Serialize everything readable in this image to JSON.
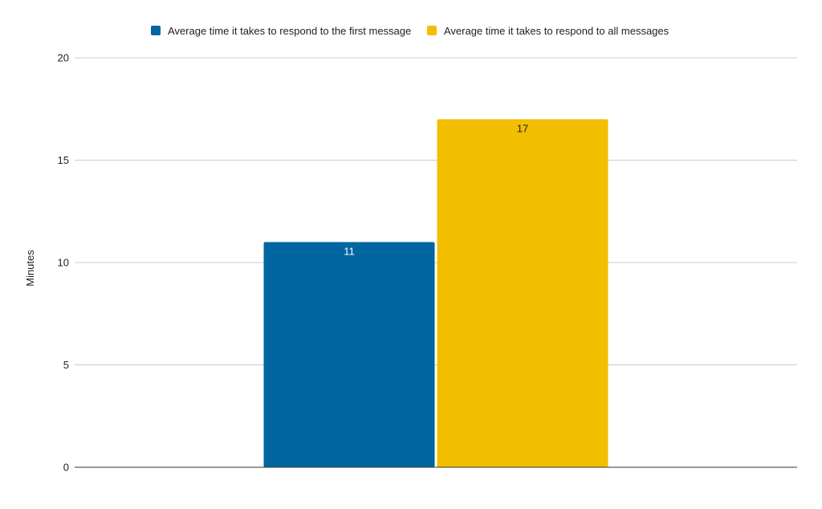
{
  "chart_data": {
    "type": "bar",
    "categories": [
      ""
    ],
    "series": [
      {
        "name": "Average time it takes to respond to the first message",
        "values": [
          11
        ],
        "color": "#0066a1",
        "label_color": "#ffffff"
      },
      {
        "name": "Average time it takes to respond to all messages",
        "values": [
          17
        ],
        "color": "#f2be00",
        "label_color": "#222222"
      }
    ],
    "title": "",
    "xlabel": "",
    "ylabel": "Minutes",
    "ylim": [
      0,
      20
    ],
    "yticks": [
      "0",
      "5",
      "10",
      "15",
      "20"
    ],
    "grid": true,
    "legend_position": "top-center",
    "data_labels": [
      "11",
      "17"
    ]
  }
}
